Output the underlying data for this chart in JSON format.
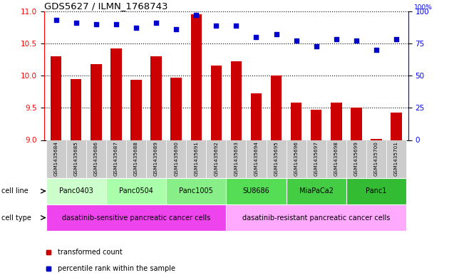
{
  "title": "GDS5627 / ILMN_1768743",
  "samples": [
    "GSM1435684",
    "GSM1435685",
    "GSM1435686",
    "GSM1435687",
    "GSM1435688",
    "GSM1435689",
    "GSM1435690",
    "GSM1435691",
    "GSM1435692",
    "GSM1435693",
    "GSM1435694",
    "GSM1435695",
    "GSM1435696",
    "GSM1435697",
    "GSM1435698",
    "GSM1435699",
    "GSM1435700",
    "GSM1435701"
  ],
  "bar_values": [
    10.3,
    9.95,
    10.18,
    10.42,
    9.93,
    10.3,
    9.97,
    10.95,
    10.16,
    10.22,
    9.72,
    10.0,
    9.58,
    9.47,
    9.58,
    9.5,
    9.02,
    9.43
  ],
  "percentile_values": [
    93,
    91,
    90,
    90,
    87,
    91,
    86,
    97,
    89,
    89,
    80,
    82,
    77,
    73,
    78,
    77,
    70,
    78
  ],
  "ylim_left": [
    9.0,
    11.0
  ],
  "ylim_right": [
    0,
    100
  ],
  "yticks_left": [
    9.0,
    9.5,
    10.0,
    10.5,
    11.0
  ],
  "yticks_right": [
    0,
    25,
    50,
    75,
    100
  ],
  "bar_color": "#cc0000",
  "dot_color": "#0000cc",
  "cell_lines": [
    {
      "label": "Panc0403",
      "start": 0,
      "end": 3,
      "color": "#ccffcc"
    },
    {
      "label": "Panc0504",
      "start": 3,
      "end": 6,
      "color": "#aaffaa"
    },
    {
      "label": "Panc1005",
      "start": 6,
      "end": 9,
      "color": "#88ee88"
    },
    {
      "label": "SU8686",
      "start": 9,
      "end": 12,
      "color": "#55dd55"
    },
    {
      "label": "MiaPaCa2",
      "start": 12,
      "end": 15,
      "color": "#44cc44"
    },
    {
      "label": "Panc1",
      "start": 15,
      "end": 18,
      "color": "#33bb33"
    }
  ],
  "cell_types": [
    {
      "label": "dasatinib-sensitive pancreatic cancer cells",
      "start": 0,
      "end": 9,
      "color": "#ee44ee"
    },
    {
      "label": "dasatinib-resistant pancreatic cancer cells",
      "start": 9,
      "end": 18,
      "color": "#ffaaff"
    }
  ],
  "legend_bar_label": "transformed count",
  "legend_dot_label": "percentile rank within the sample",
  "bg_color": "#ffffff"
}
